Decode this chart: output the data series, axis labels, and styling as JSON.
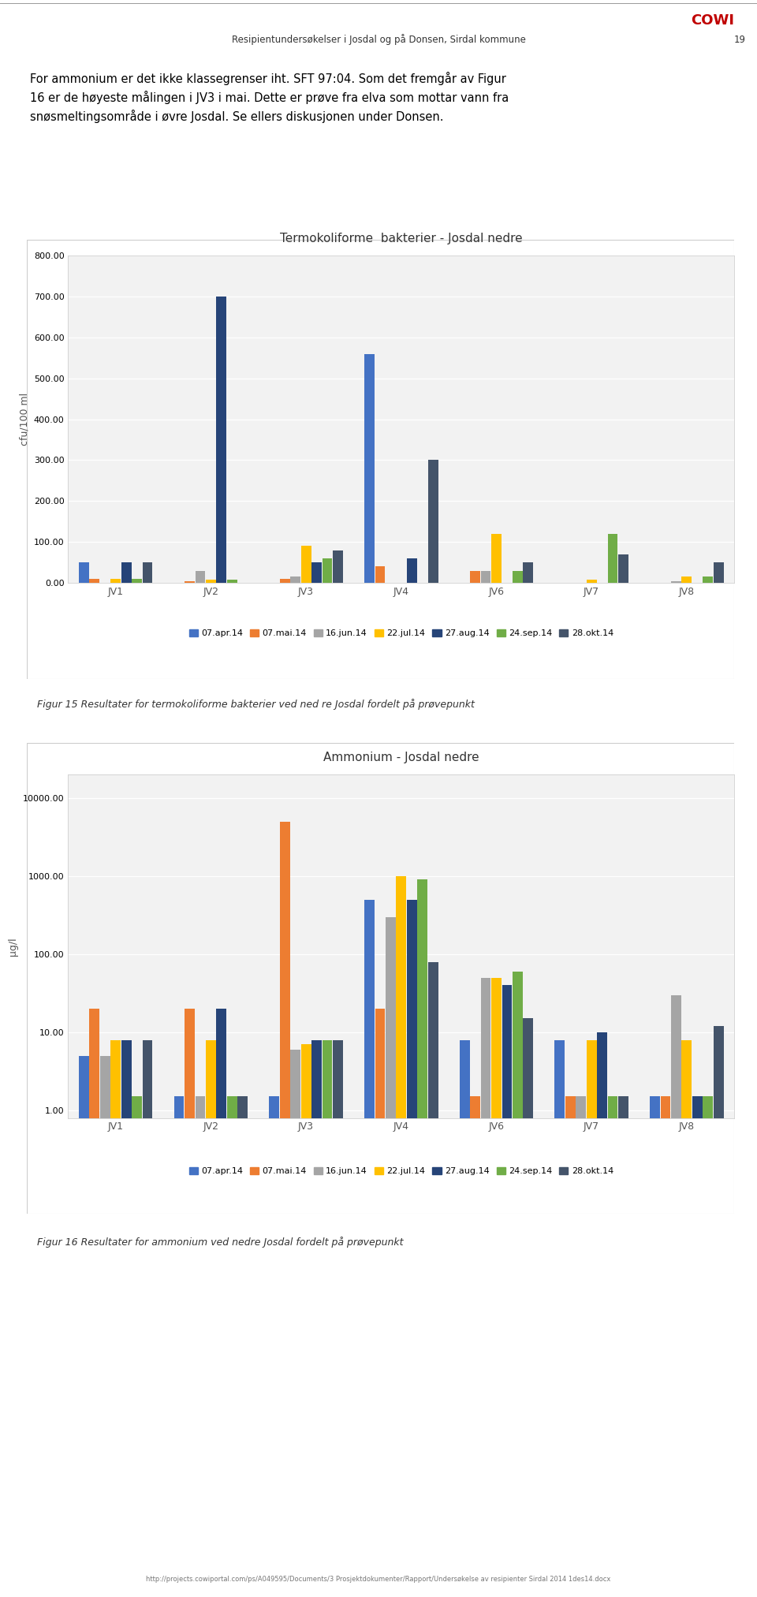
{
  "header_text": "Resipientundersøkelser i Josdal og på Donsen, Sirdal kommune",
  "header_page": "19",
  "header_cowi": "COWI",
  "body_text_lines": [
    "For ammonium er det ikke klassegrenser iht. SFT 97:04. Som det fremgår av Figur",
    "16 er de høyeste målingen i JV3 i mai. Dette er prøve fra elva som mottar vann fra",
    "snøsmeltingsområde i øvre Josdal. Se ellers diskusjonen under Donsen."
  ],
  "chart1_title": "Termokoliforme  bakterier - Josdal nedre",
  "chart1_ylabel": "cfu/100 ml",
  "chart1_categories": [
    "JV1",
    "JV2",
    "JV3",
    "JV4",
    "JV6",
    "JV7",
    "JV8"
  ],
  "chart1_series_labels": [
    "07.apr.14",
    "07.mai.14",
    "16.jun.14",
    "22.jul.14",
    "27.aug.14",
    "24.sep.14",
    "28.okt.14"
  ],
  "chart1_colors": [
    "#4472C4",
    "#ED7D31",
    "#A5A5A5",
    "#FFC000",
    "#264478",
    "#70AD47",
    "#44546A"
  ],
  "chart1_data": {
    "07.apr.14": [
      50,
      0,
      0,
      560,
      0,
      0,
      0
    ],
    "07.mai.14": [
      10,
      5,
      10,
      40,
      30,
      0,
      0
    ],
    "16.jun.14": [
      0,
      30,
      15,
      0,
      30,
      0,
      5
    ],
    "22.jul.14": [
      10,
      8,
      90,
      0,
      120,
      8,
      15
    ],
    "27.aug.14": [
      50,
      700,
      50,
      60,
      0,
      0,
      0
    ],
    "24.sep.14": [
      10,
      8,
      60,
      0,
      30,
      120,
      15
    ],
    "28.okt.14": [
      50,
      0,
      80,
      300,
      50,
      70,
      50
    ]
  },
  "chart1_ylim": [
    0,
    800
  ],
  "chart1_yticks": [
    0,
    100,
    200,
    300,
    400,
    500,
    600,
    700,
    800
  ],
  "chart2_title": "Ammonium - Josdal nedre",
  "chart2_ylabel": "µg/l",
  "chart2_categories": [
    "JV1",
    "JV2",
    "JV3",
    "JV4",
    "JV6",
    "JV7",
    "JV8"
  ],
  "chart2_series_labels": [
    "07.apr.14",
    "07.mai.14",
    "16.jun.14",
    "22.jul.14",
    "27.aug.14",
    "24.sep.14",
    "28.okt.14"
  ],
  "chart2_colors": [
    "#4472C4",
    "#ED7D31",
    "#A5A5A5",
    "#FFC000",
    "#264478",
    "#70AD47",
    "#44546A"
  ],
  "chart2_data": {
    "07.apr.14": [
      5,
      1.5,
      1.5,
      500,
      8,
      8,
      1.5
    ],
    "07.mai.14": [
      20,
      20,
      5000,
      20,
      1.5,
      1.5,
      1.5
    ],
    "16.jun.14": [
      5,
      1.5,
      6,
      300,
      50,
      1.5,
      30
    ],
    "22.jul.14": [
      8,
      8,
      7,
      1000,
      50,
      8,
      8
    ],
    "27.aug.14": [
      8,
      20,
      8,
      500,
      40,
      10,
      1.5
    ],
    "24.sep.14": [
      1.5,
      1.5,
      8,
      900,
      60,
      1.5,
      1.5
    ],
    "28.okt.14": [
      8,
      1.5,
      8,
      80,
      15,
      1.5,
      12
    ]
  },
  "chart2_yticks": [
    1.0,
    10.0,
    100.0,
    1000.0,
    10000.0
  ],
  "chart2_ytick_labels": [
    "1.00",
    "10.00",
    "100.00",
    "1000.00",
    "10000.00"
  ],
  "caption1": "Figur 15 Resultater for termokoliforme bakterier ved ned re Josdal fordelt på prøvepunkt",
  "caption2": "Figur 16 Resultater for ammonium ved nedre Josdal fordelt på prøvepunkt",
  "footer_url": "http://projects.cowiportal.com/ps/A049595/Documents/3 Prosjektdokumenter/Rapport/Undersøkelse av resipienter Sirdal 2014 1des14.docx",
  "background_color": "#FFFFFF",
  "chart_bg": "#F2F2F2",
  "grid_color": "#FFFFFF",
  "chart_border_color": "#D0D0D0"
}
